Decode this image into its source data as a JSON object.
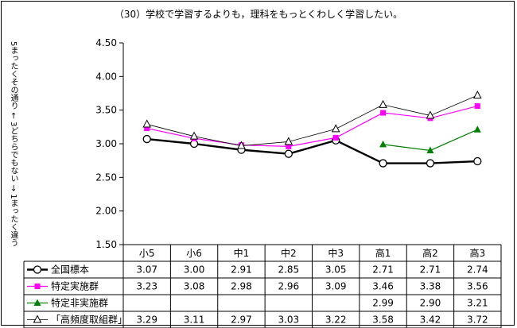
{
  "chart_data": {
    "type": "line",
    "title": "（30）学校で学習するよりも，理科をもっとくわしく学習したい。",
    "ylabel": "5まったくその通り ← 3どちらでもない → 1まったく違う",
    "ylim": [
      1.5,
      4.5
    ],
    "yticks": [
      "1.50",
      "2.00",
      "2.50",
      "3.00",
      "3.50",
      "4.00",
      "4.50"
    ],
    "grid": false,
    "legend": "data-table",
    "categories": [
      "小5",
      "小6",
      "中1",
      "中2",
      "中3",
      "高1",
      "高2",
      "高3"
    ],
    "series": [
      {
        "name": "全国標本",
        "marker": "circle",
        "color": "#000000",
        "values": [
          3.07,
          3.0,
          2.91,
          2.85,
          3.05,
          2.71,
          2.71,
          2.74
        ],
        "labels": [
          "3.07",
          "3.00",
          "2.91",
          "2.85",
          "3.05",
          "2.71",
          "2.71",
          "2.74"
        ]
      },
      {
        "name": "特定実施群",
        "marker": "square",
        "color": "#ff00ff",
        "values": [
          3.23,
          3.08,
          2.98,
          2.96,
          3.09,
          3.46,
          3.38,
          3.56
        ],
        "labels": [
          "3.23",
          "3.08",
          "2.98",
          "2.96",
          "3.09",
          "3.46",
          "3.38",
          "3.56"
        ]
      },
      {
        "name": "特定非実施群",
        "marker": "triangle",
        "color": "#008000",
        "values": [
          null,
          null,
          null,
          null,
          null,
          2.99,
          2.9,
          3.21
        ],
        "labels": [
          "",
          "",
          "",
          "",
          "",
          "2.99",
          "2.90",
          "3.21"
        ]
      },
      {
        "name": "「高頻度取組群」",
        "marker": "triangle-open",
        "color": "#000000",
        "values": [
          3.29,
          3.11,
          2.97,
          3.03,
          3.22,
          3.58,
          3.42,
          3.72
        ],
        "labels": [
          "3.29",
          "3.11",
          "2.97",
          "3.03",
          "3.22",
          "3.58",
          "3.42",
          "3.72"
        ]
      }
    ]
  }
}
